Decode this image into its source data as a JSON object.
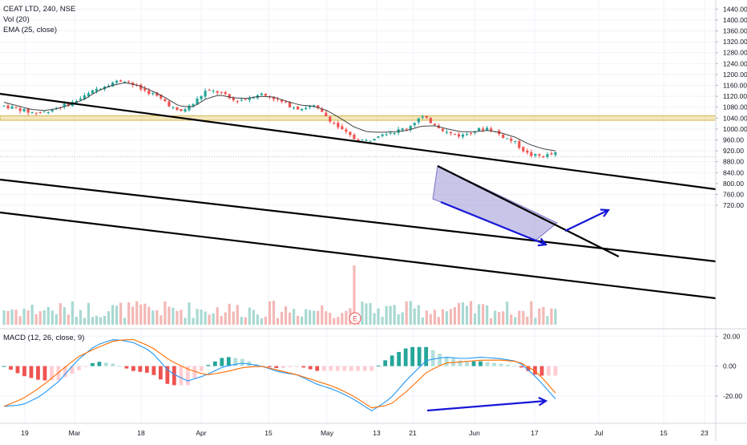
{
  "legend": {
    "symbol": "CEAT LTD, 240, NSE",
    "vol": "Vol (20)",
    "ema": "EMA (25, close)",
    "macd": "MACD (12, 26, close, 9)"
  },
  "earnings_marker": "E",
  "colors": {
    "up": "#26a69a",
    "down": "#ef5350",
    "vol_up": "#a8d9d2",
    "vol_down": "#f3b8b6",
    "hist_up_strong": "#26a69a",
    "hist_up_weak": "#b2dfdb",
    "hist_down_strong": "#ef5350",
    "hist_down_weak": "#ffcdd2",
    "macd_line": "#2196f3",
    "signal_line": "#ff6d00",
    "ema": "#454545",
    "trend_lines": "#000000",
    "annotation_arrows": "#1616d8",
    "wedge_fill": "#9b96d6",
    "support_zone": "#e8d070"
  },
  "chart_data": [
    {
      "type": "candlestick",
      "symbol": "CEAT LTD",
      "interval": "240",
      "exchange": "NSE",
      "x_labels": [
        "19",
        "Mar",
        "18",
        "Apr",
        "15",
        "May",
        "13",
        "21",
        "Jun",
        "17",
        "Jul",
        "15",
        "23"
      ],
      "y_ticks": [
        720,
        760,
        800,
        840,
        880,
        920,
        960,
        1000,
        1040,
        1080,
        1120,
        1160,
        1200,
        1240,
        1280,
        1320,
        1360,
        1400,
        1440
      ],
      "y_tick_labels": [
        "720.00",
        "760.00",
        "800.00",
        "840.00",
        "880.00",
        "920.00",
        "960.00",
        "1000.00",
        "1040.00",
        "1080.00",
        "1120.00",
        "1160.00",
        "1200.00",
        "1240.00",
        "1280.00",
        "1320.00",
        "1360.00",
        "1400.00",
        "1440.00"
      ],
      "ylim": [
        700,
        1460
      ],
      "close_path": [
        1085,
        1075,
        1060,
        1062,
        1080,
        1095,
        1120,
        1150,
        1170,
        1180,
        1150,
        1130,
        1100,
        1060,
        1090,
        1140,
        1135,
        1105,
        1110,
        1130,
        1115,
        1090,
        1075,
        1085,
        1045,
        1000,
        965,
        955,
        985,
        990,
        1005,
        1045,
        1020,
        985,
        975,
        995,
        1005,
        975,
        950,
        905,
        900,
        910
      ],
      "ema_path": [
        1098,
        1085,
        1072,
        1068,
        1075,
        1090,
        1110,
        1140,
        1160,
        1170,
        1160,
        1140,
        1115,
        1085,
        1080,
        1110,
        1125,
        1115,
        1112,
        1120,
        1118,
        1102,
        1088,
        1084,
        1068,
        1040,
        1008,
        990,
        988,
        990,
        995,
        1010,
        1012,
        1000,
        990,
        990,
        995,
        985,
        970,
        945,
        928,
        920
      ],
      "volume_spike": 800,
      "lines": [
        "descending channel upper trendline",
        "descending channel lower trendline",
        "parallel lower trendline",
        "short-term wedge resistance",
        "horizontal support zone near 1040"
      ]
    },
    {
      "type": "macd",
      "fast": 12,
      "slow": 26,
      "source": "close",
      "signal_length": 9,
      "y_ticks": [
        20,
        0,
        -20
      ],
      "y_tick_labels": [
        "20.00",
        "0.00",
        "-20.00"
      ],
      "ylim": [
        -34,
        26
      ],
      "macd_path": [
        -27,
        -26,
        -20,
        -10,
        4,
        14,
        18,
        16,
        10,
        -4,
        -10,
        -6,
        0,
        2,
        0,
        -4,
        -6,
        -12,
        -16,
        -22,
        -30,
        -22,
        -8,
        4,
        6,
        5,
        6,
        5,
        3,
        -8,
        -22
      ],
      "signal_path": [
        -27,
        -22,
        -14,
        -4,
        6,
        12,
        17,
        18,
        13,
        4,
        -2,
        -6,
        -4,
        -1,
        0,
        -3,
        -6,
        -10,
        -14,
        -20,
        -28,
        -26,
        -16,
        -4,
        2,
        3,
        4,
        4,
        3,
        -4,
        -18
      ]
    }
  ]
}
